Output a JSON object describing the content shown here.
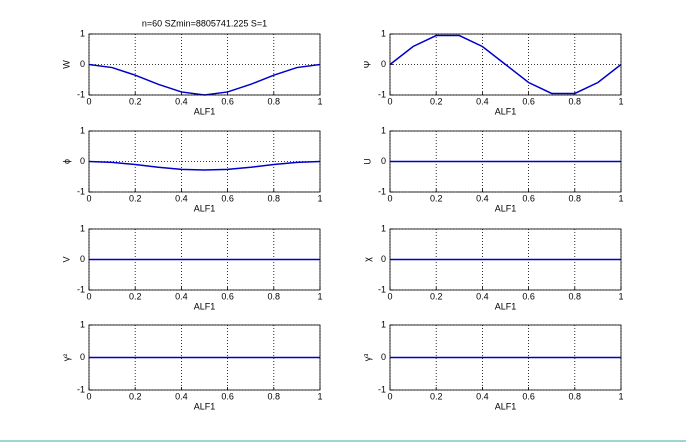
{
  "chart_data": [
    {
      "type": "line",
      "title": "n=60 SZmin=8805741.225 S=1",
      "xlabel": "ALF1",
      "ylabel": "W",
      "x": [
        0,
        0.1,
        0.2,
        0.3,
        0.4,
        0.5,
        0.6,
        0.7,
        0.8,
        0.9,
        1
      ],
      "values": [
        0,
        -0.1,
        -0.35,
        -0.65,
        -0.9,
        -1,
        -0.9,
        -0.65,
        -0.35,
        -0.1,
        0
      ],
      "color": "#0000cc",
      "xlim": [
        0,
        1
      ],
      "ylim": [
        -1,
        1
      ],
      "xticks": [
        0,
        0.2,
        0.4,
        0.6,
        0.8,
        1
      ],
      "yticks": [
        -1,
        0,
        1
      ],
      "grid": true
    },
    {
      "type": "line",
      "xlabel": "ALF1",
      "ylabel": "Ψ",
      "x": [
        0,
        0.1,
        0.2,
        0.3,
        0.4,
        0.5,
        0.6,
        0.7,
        0.8,
        0.9,
        1
      ],
      "values": [
        0,
        0.59,
        0.95,
        0.95,
        0.59,
        0,
        -0.59,
        -0.95,
        -0.95,
        -0.59,
        0
      ],
      "color": "#0000cc",
      "xlim": [
        0,
        1
      ],
      "ylim": [
        -1,
        1
      ],
      "xticks": [
        0,
        0.2,
        0.4,
        0.6,
        0.8,
        1
      ],
      "yticks": [
        -1,
        0,
        1
      ],
      "grid": true
    },
    {
      "type": "line",
      "xlabel": "ALF1",
      "ylabel": "ϕ",
      "x": [
        0,
        0.1,
        0.2,
        0.3,
        0.4,
        0.5,
        0.6,
        0.7,
        0.8,
        0.9,
        1
      ],
      "values": [
        0,
        -0.03,
        -0.1,
        -0.19,
        -0.26,
        -0.28,
        -0.26,
        -0.19,
        -0.1,
        -0.03,
        0
      ],
      "color": "#0000cc",
      "xlim": [
        0,
        1
      ],
      "ylim": [
        -1,
        1
      ],
      "xticks": [
        0,
        0.2,
        0.4,
        0.6,
        0.8,
        1
      ],
      "yticks": [
        -1,
        0,
        1
      ],
      "grid": true
    },
    {
      "type": "line",
      "xlabel": "ALF1",
      "ylabel": "U",
      "x": [
        0,
        1
      ],
      "values": [
        0,
        0
      ],
      "color": "#0000cc",
      "xlim": [
        0,
        1
      ],
      "ylim": [
        -1,
        1
      ],
      "xticks": [
        0,
        0.2,
        0.4,
        0.6,
        0.8,
        1
      ],
      "yticks": [
        -1,
        0,
        1
      ],
      "grid": true
    },
    {
      "type": "line",
      "xlabel": "ALF1",
      "ylabel": "V",
      "x": [
        0,
        1
      ],
      "values": [
        0,
        0
      ],
      "color": "#0000cc",
      "xlim": [
        0,
        1
      ],
      "ylim": [
        -1,
        1
      ],
      "xticks": [
        0,
        0.2,
        0.4,
        0.6,
        0.8,
        1
      ],
      "yticks": [
        -1,
        0,
        1
      ],
      "grid": true
    },
    {
      "type": "line",
      "xlabel": "ALF1",
      "ylabel": "χ",
      "x": [
        0,
        1
      ],
      "values": [
        0,
        0
      ],
      "color": "#0000cc",
      "xlim": [
        0,
        1
      ],
      "ylim": [
        -1,
        1
      ],
      "xticks": [
        0,
        0.2,
        0.4,
        0.6,
        0.8,
        1
      ],
      "yticks": [
        -1,
        0,
        1
      ],
      "grid": true
    },
    {
      "type": "line",
      "xlabel": "ALF1",
      "ylabel": "γ²",
      "x": [
        0,
        1
      ],
      "values": [
        0,
        0
      ],
      "color": "#0000cc",
      "xlim": [
        0,
        1
      ],
      "ylim": [
        -1,
        1
      ],
      "xticks": [
        0,
        0.2,
        0.4,
        0.6,
        0.8,
        1
      ],
      "yticks": [
        -1,
        0,
        1
      ],
      "grid": true
    },
    {
      "type": "line",
      "xlabel": "ALF1",
      "ylabel": "γ³",
      "x": [
        0,
        1
      ],
      "values": [
        0,
        0
      ],
      "color": "#0000cc",
      "xlim": [
        0,
        1
      ],
      "ylim": [
        -1,
        1
      ],
      "xticks": [
        0,
        0.2,
        0.4,
        0.6,
        0.8,
        1
      ],
      "yticks": [
        -1,
        0,
        1
      ],
      "grid": true
    }
  ]
}
